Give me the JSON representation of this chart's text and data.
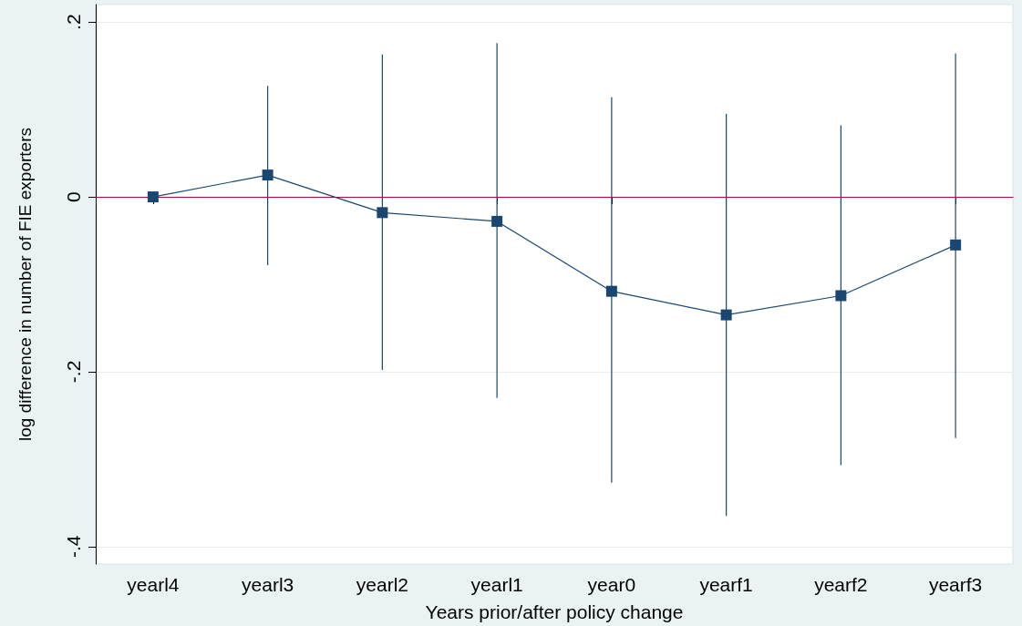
{
  "chart_data": {
    "type": "line",
    "xlabel": "Years prior/after policy change",
    "ylabel": "log difference in number of FIE exporters",
    "categories": [
      "yearl4",
      "yearl3",
      "yearl2",
      "yearl1",
      "year0",
      "yearf1",
      "yearf2",
      "yearf3"
    ],
    "series": [
      {
        "color": "#1a476f",
        "values": [
          0,
          0.025,
          -0.018,
          -0.028,
          -0.108,
          -0.135,
          -0.113,
          -0.055
        ],
        "errors": [
          null,
          [
            -0.078,
            0.127
          ],
          [
            -0.198,
            0.163
          ],
          [
            -0.23,
            0.176
          ],
          [
            -0.327,
            0.114
          ],
          [
            -0.365,
            0.095
          ],
          [
            -0.307,
            0.082
          ],
          [
            -0.276,
            0.164
          ]
        ]
      }
    ],
    "ylim": [
      -0.42,
      0.22
    ],
    "yticks": [
      {
        "value": -0.4,
        "label": "-.4"
      },
      {
        "value": -0.2,
        "label": "-.2"
      },
      0,
      {
        "value": 0.2,
        "label": ".2"
      }
    ],
    "ref_lines": [
      {
        "axis": "y",
        "value": 0,
        "color": "#c10534"
      }
    ],
    "grid": "y",
    "marker": "square",
    "line_style": "solid"
  }
}
